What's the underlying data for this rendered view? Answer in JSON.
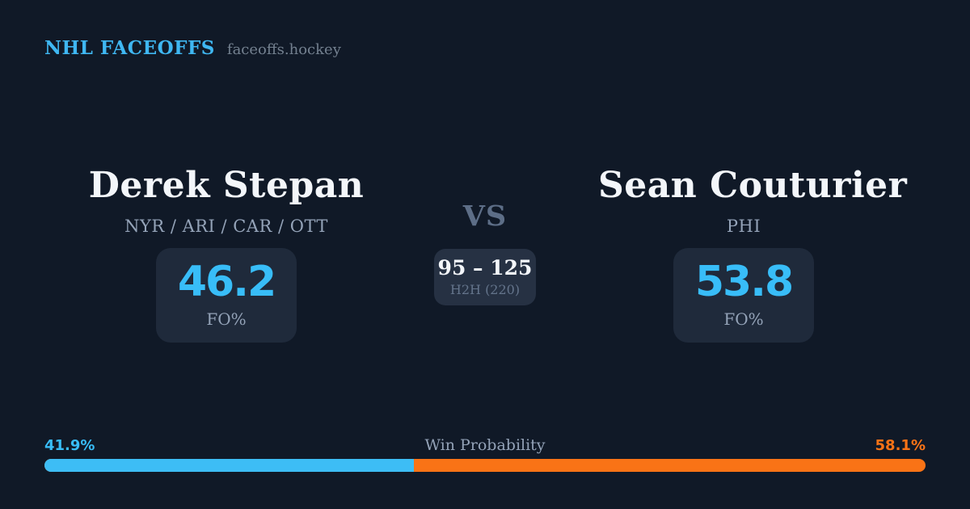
{
  "header": {
    "brand": "NHL FACEOFFS",
    "site_domain": "faceoffs.hockey"
  },
  "players": {
    "left": {
      "name": "Derek Stepan",
      "teams": "NYR / ARI / CAR / OTT",
      "fo_pct": "46.2",
      "stat_label": "FO%"
    },
    "right": {
      "name": "Sean Couturier",
      "teams": "PHI",
      "fo_pct": "53.8",
      "stat_label": "FO%"
    }
  },
  "center": {
    "vs": "VS",
    "h2h_score": "95 – 125",
    "h2h_label": "H2H (220)"
  },
  "win_probability": {
    "title": "Win Probability",
    "left_pct_label": "41.9%",
    "right_pct_label": "58.1%",
    "left_value": 41.9,
    "right_value": 58.1
  },
  "colors": {
    "background": "#101927",
    "card": "#1f2a3b",
    "center_card": "#263143",
    "accent_blue": "#38bdf8",
    "accent_orange": "#f97316",
    "text_white": "#f3f6fa",
    "text_gray": "#94a3b8",
    "text_slate": "#5d6e87"
  },
  "chart_data": {
    "type": "bar",
    "title": "Win Probability",
    "categories": [
      "Derek Stepan",
      "Sean Couturier"
    ],
    "series": [
      {
        "name": "Win Probability %",
        "values": [
          41.9,
          58.1
        ]
      }
    ],
    "unit": "%",
    "colors": [
      "#3dbdf5",
      "#f97316"
    ],
    "layout": "horizontal-stacked-100pct",
    "annotations": {
      "left_player_fo_pct": 46.2,
      "right_player_fo_pct": 53.8,
      "head_to_head": {
        "left_wins": 95,
        "right_wins": 125,
        "total": 220
      }
    }
  }
}
